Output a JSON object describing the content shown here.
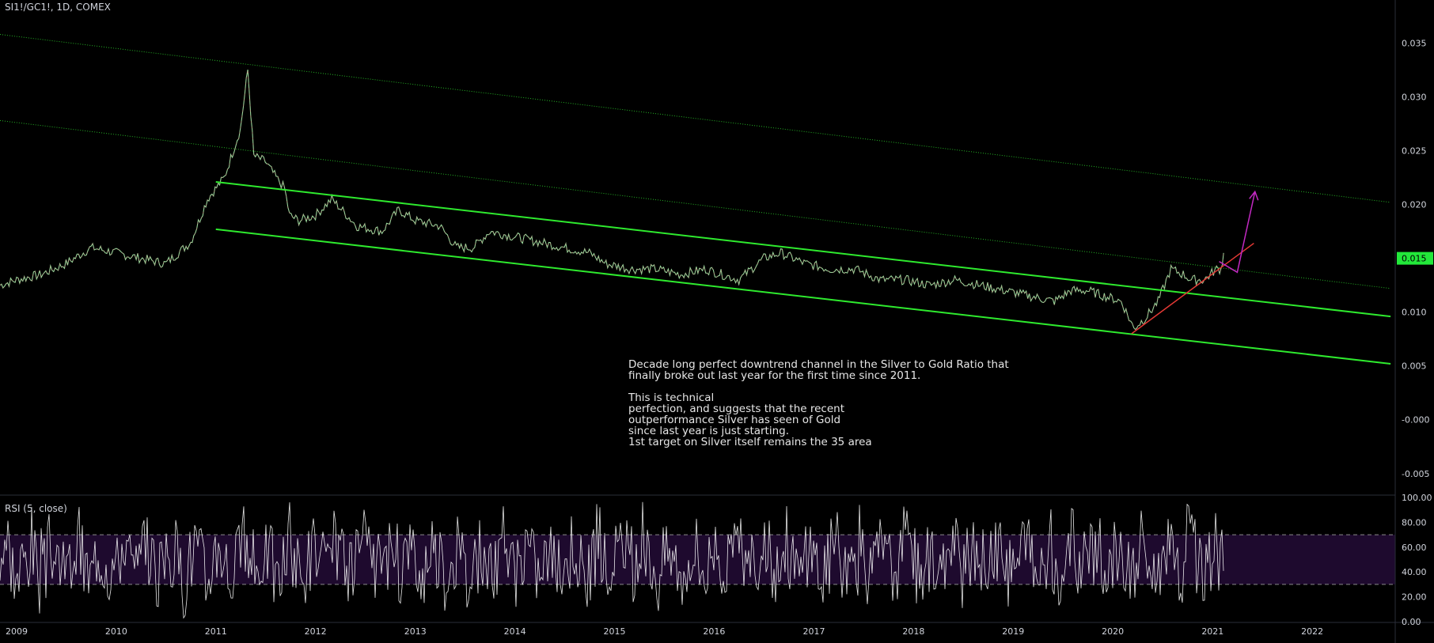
{
  "header": {
    "symbol": "SI1!/GC1!, 1D, COMEX"
  },
  "annotation": {
    "lines": [
      "Decade long perfect downtrend channel in the Silver to Gold Ratio that",
      "finally broke out last year for the first time since 2011.",
      "",
      "This is technical",
      "perfection, and suggests that the recent",
      "outperformance Silver has seen of Gold",
      "since last year is just starting.",
      "1st target on Silver itself remains the 35 area"
    ]
  },
  "last_price": {
    "label": "0.015",
    "color": "#22e83a"
  },
  "colors": {
    "background": "#000000",
    "channel": "#2eea2e",
    "outer_channel": "#25b225",
    "trendline": "#e53935",
    "projection_arrow": "#c229c2",
    "rsi_line": "#ffffff",
    "rsi_band": "#1e0a2e",
    "axis_text": "#d1d4dc"
  },
  "chart_data": {
    "type": "line",
    "title": "SI1!/GC1!, 1D, COMEX",
    "x_axis": {
      "type": "date",
      "range": [
        "2008-11-01",
        "2022-11-01"
      ],
      "tick_labels": [
        "2009",
        "2010",
        "2011",
        "2012",
        "2013",
        "2014",
        "2015",
        "2016",
        "2017",
        "2018",
        "2019",
        "2020",
        "2021",
        "2022"
      ]
    },
    "y_axis": {
      "range": [
        -0.007,
        0.039
      ],
      "tick_labels": [
        "0.035",
        "0.030",
        "0.025",
        "0.020",
        "0.015",
        "0.010",
        "0.005",
        "-0.000",
        "-0.005"
      ]
    },
    "series": [
      {
        "x": [
          "2008-11-01",
          "2009-01-01",
          "2009-04-01",
          "2009-07-01",
          "2009-10-01",
          "2010-01-01",
          "2010-04-01",
          "2010-07-01",
          "2010-10-01",
          "2010-12-01",
          "2011-02-01",
          "2011-04-01",
          "2011-04-28",
          "2011-05-20",
          "2011-07-01",
          "2011-08-10",
          "2011-09-10",
          "2011-09-28",
          "2011-11-01",
          "2012-01-01",
          "2012-03-01",
          "2012-06-01",
          "2012-09-01",
          "2012-11-01",
          "2013-01-01",
          "2013-04-01",
          "2013-06-01",
          "2013-08-01",
          "2013-10-01",
          "2014-01-01",
          "2014-04-01",
          "2014-07-01",
          "2014-10-01",
          "2014-12-01",
          "2015-03-01",
          "2015-06-01",
          "2015-09-01",
          "2015-12-01",
          "2016-02-01",
          "2016-04-01",
          "2016-07-01",
          "2016-09-01",
          "2016-12-01",
          "2017-03-01",
          "2017-06-01",
          "2017-09-01",
          "2017-12-01",
          "2018-03-01",
          "2018-06-01",
          "2018-09-01",
          "2018-12-01",
          "2019-03-01",
          "2019-06-01",
          "2019-08-01",
          "2019-10-01",
          "2019-12-01",
          "2020-02-01",
          "2020-03-18",
          "2020-05-01",
          "2020-06-15",
          "2020-08-01",
          "2020-09-15",
          "2020-10-15",
          "2020-12-01",
          "2021-01-15",
          "2021-02-01",
          "2021-02-10"
        ],
        "y": [
          0.0125,
          0.013,
          0.0135,
          0.0145,
          0.016,
          0.0155,
          0.015,
          0.0145,
          0.0165,
          0.0205,
          0.0225,
          0.027,
          0.0325,
          0.0245,
          0.024,
          0.0225,
          0.0215,
          0.019,
          0.0185,
          0.019,
          0.0205,
          0.018,
          0.0175,
          0.0195,
          0.0185,
          0.018,
          0.016,
          0.016,
          0.0175,
          0.017,
          0.0165,
          0.016,
          0.0155,
          0.0145,
          0.014,
          0.014,
          0.0135,
          0.014,
          0.0135,
          0.013,
          0.015,
          0.0155,
          0.0145,
          0.014,
          0.014,
          0.013,
          0.013,
          0.0125,
          0.013,
          0.0125,
          0.012,
          0.0115,
          0.011,
          0.012,
          0.012,
          0.0115,
          0.011,
          0.0085,
          0.0095,
          0.011,
          0.014,
          0.0135,
          0.013,
          0.013,
          0.014,
          0.014,
          0.0155
        ]
      }
    ],
    "trendlines": {
      "channel_upper": [
        [
          "2011-01-01",
          0.0221
        ],
        [
          "2022-10-15",
          0.0096
        ]
      ],
      "channel_lower": [
        [
          "2011-01-01",
          0.0177
        ],
        [
          "2022-10-15",
          0.0052
        ]
      ],
      "outer_upper": [
        [
          "2008-11-01",
          0.0358
        ],
        [
          "2022-10-15",
          0.0202
        ]
      ],
      "outer_middle": [
        [
          "2008-11-01",
          0.0278
        ],
        [
          "2022-10-15",
          0.0122
        ]
      ],
      "rising_support": [
        [
          "2020-03-10",
          0.008
        ],
        [
          "2021-06-01",
          0.0164
        ]
      ],
      "projection_arrow": [
        [
          "2021-01-25",
          0.0147
        ],
        [
          "2021-04-01",
          0.0137
        ],
        [
          "2021-06-05",
          0.0212
        ]
      ]
    },
    "rsi": {
      "label": "RSI (5, close)",
      "levels": [
        70,
        30
      ],
      "y_range": [
        0,
        100
      ],
      "tick_labels": [
        "100.00",
        "80.00",
        "60.00",
        "40.00",
        "20.00",
        "0.00"
      ]
    },
    "grid": false
  }
}
